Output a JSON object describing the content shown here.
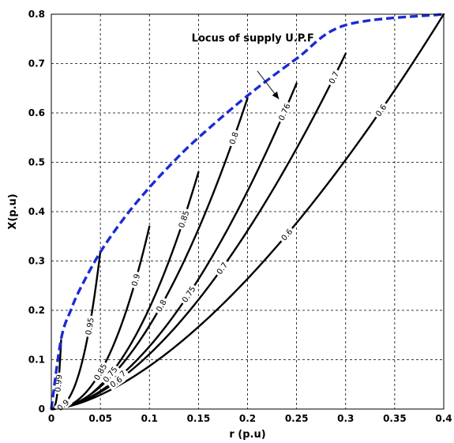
{
  "chart_data": {
    "type": "line",
    "xlabel": "r (p.u)",
    "ylabel": "X(p.u)",
    "xlim": [
      0,
      0.4
    ],
    "ylim": [
      0,
      0.8
    ],
    "x_ticks": [
      "0",
      "0.05",
      "0.1",
      "0.15",
      "0.2",
      "0.25",
      "0.3",
      "0.35",
      "0.4"
    ],
    "y_ticks": [
      "0",
      "0.1",
      "0.2",
      "0.3",
      "0.4",
      "0.5",
      "0.6",
      "0.7",
      "0.8"
    ],
    "grid": true,
    "colors": {
      "locus": "#1a2bd6",
      "curves": "#000000"
    },
    "annotation": {
      "text": "Locus of supply U.P.F",
      "arrow_from": [
        0.21,
        0.685
      ],
      "arrow_to": [
        0.232,
        0.628
      ]
    },
    "locus": [
      [
        0,
        0
      ],
      [
        0.01,
        0.142
      ],
      [
        0.02,
        0.201
      ],
      [
        0.03,
        0.246
      ],
      [
        0.05,
        0.318
      ],
      [
        0.075,
        0.389
      ],
      [
        0.1,
        0.449
      ],
      [
        0.125,
        0.502
      ],
      [
        0.15,
        0.55
      ],
      [
        0.2,
        0.635
      ],
      [
        0.25,
        0.71
      ],
      [
        0.3,
        0.778
      ],
      [
        0.4,
        0.8
      ]
    ],
    "curves": [
      {
        "end": [
          0.01,
          0.14
        ],
        "exponent": 3,
        "labels": [
          {
            "text": "0.99",
            "at": 0.72
          }
        ]
      },
      {
        "end": [
          0.05,
          0.32
        ],
        "exponent": 2.6,
        "labels": [
          {
            "text": "0.95",
            "at": 0.78
          },
          {
            "text": "0.9",
            "at": 0.24
          }
        ]
      },
      {
        "end": [
          0.1,
          0.37
        ],
        "exponent": 2.3,
        "labels": [
          {
            "text": "0.9",
            "at": 0.86
          },
          {
            "text": "0.85",
            "at": 0.5
          }
        ]
      },
      {
        "end": [
          0.15,
          0.48
        ],
        "exponent": 2.1,
        "labels": [
          {
            "text": "0.85",
            "at": 0.9
          },
          {
            "text": "0.75",
            "at": 0.4
          }
        ]
      },
      {
        "end": [
          0.2,
          0.63
        ],
        "exponent": 1.9,
        "labels": [
          {
            "text": "0.8",
            "at": 0.93
          },
          {
            "text": "0.8",
            "at": 0.56
          }
        ]
      },
      {
        "end": [
          0.25,
          0.66
        ],
        "exponent": 1.8,
        "labels": [
          {
            "text": "0.76",
            "at": 0.95
          },
          {
            "text": "0.75",
            "at": 0.56
          },
          {
            "text": "0.7",
            "at": 0.28
          }
        ]
      },
      {
        "end": [
          0.3,
          0.72
        ],
        "exponent": 1.7,
        "labels": [
          {
            "text": "0.7",
            "at": 0.96
          },
          {
            "text": "0.7",
            "at": 0.58
          },
          {
            "text": "0.6",
            "at": 0.22
          }
        ]
      },
      {
        "end": [
          0.4,
          0.8
        ],
        "exponent": 1.6,
        "labels": [
          {
            "text": "0.6",
            "at": 0.84
          },
          {
            "text": "0.6",
            "at": 0.6
          }
        ]
      }
    ]
  }
}
